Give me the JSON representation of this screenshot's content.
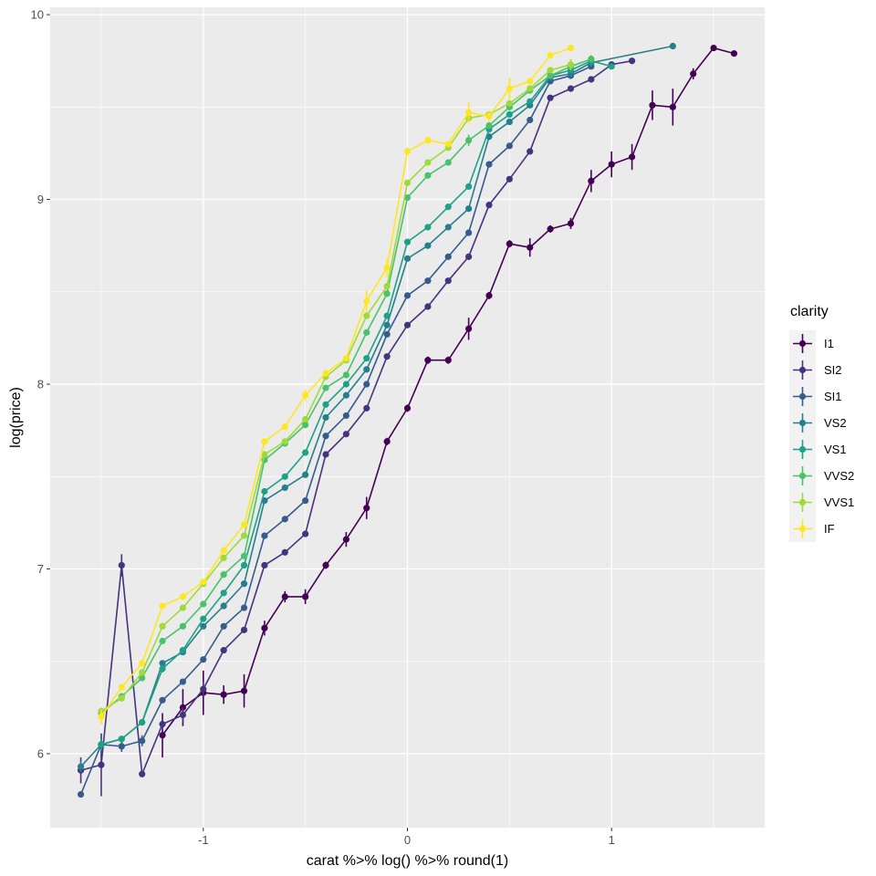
{
  "chart_data": {
    "type": "line",
    "xlabel": "carat %>% log() %>% round(1)",
    "ylabel": "log(price)",
    "xlim": [
      -1.75,
      1.75
    ],
    "ylim": [
      5.6,
      10.04
    ],
    "x_ticks": [
      -1,
      0,
      1
    ],
    "x_tick_labels": [
      "-1",
      "0",
      "1"
    ],
    "y_ticks": [
      6,
      7,
      8,
      9,
      10
    ],
    "y_tick_labels": [
      "6",
      "7",
      "8",
      "9",
      "10"
    ],
    "grid": true,
    "legend": {
      "title": "clarity",
      "position": "right"
    },
    "series": [
      {
        "name": "I1",
        "color": "#440154",
        "points": [
          [
            -1.2,
            6.1,
            0.12
          ],
          [
            -1.1,
            6.25,
            0.1
          ],
          [
            -1.0,
            6.33,
            0.12
          ],
          [
            -0.9,
            6.32,
            0.05
          ],
          [
            -0.8,
            6.34,
            0.09
          ],
          [
            -0.7,
            6.68,
            0.04
          ],
          [
            -0.6,
            6.85,
            0.03
          ],
          [
            -0.5,
            6.85,
            0.04
          ],
          [
            -0.4,
            7.02,
            0.02
          ],
          [
            -0.3,
            7.16,
            0.04
          ],
          [
            -0.2,
            7.33,
            0.06
          ],
          [
            -0.1,
            7.69,
            0.02
          ],
          [
            0.0,
            7.87,
            0.02
          ],
          [
            0.1,
            8.13,
            0.02
          ],
          [
            0.2,
            8.13,
            0.02
          ],
          [
            0.3,
            8.3,
            0.06
          ],
          [
            0.4,
            8.48,
            0.02
          ],
          [
            0.5,
            8.76,
            0.02
          ],
          [
            0.6,
            8.74,
            0.05
          ],
          [
            0.7,
            8.84,
            0.02
          ],
          [
            0.8,
            8.87,
            0.03
          ],
          [
            0.9,
            9.1,
            0.06
          ],
          [
            1.0,
            9.19,
            0.07
          ],
          [
            1.1,
            9.23,
            0.07
          ],
          [
            1.2,
            9.51,
            0.08
          ],
          [
            1.3,
            9.5,
            0.1
          ],
          [
            1.4,
            9.68,
            0.03
          ],
          [
            1.5,
            9.82,
            0.01
          ],
          [
            1.6,
            9.79,
            0.01
          ]
        ]
      },
      {
        "name": "SI2",
        "color": "#46337E",
        "points": [
          [
            -1.6,
            5.91,
            0.07
          ],
          [
            -1.5,
            5.94,
            0.17
          ],
          [
            -1.4,
            7.02,
            0.06
          ],
          [
            -1.3,
            5.89,
            0.01
          ],
          [
            -1.2,
            6.16,
            0.03
          ],
          [
            -1.1,
            6.21,
            0.04
          ],
          [
            -1.0,
            6.35,
            0.04
          ],
          [
            -0.9,
            6.56,
            0.01
          ],
          [
            -0.8,
            6.67,
            0.01
          ],
          [
            -0.7,
            7.02,
            0.01
          ],
          [
            -0.6,
            7.09,
            0.01
          ],
          [
            -0.5,
            7.19,
            0.01
          ],
          [
            -0.4,
            7.62,
            0.01
          ],
          [
            -0.3,
            7.73,
            0.01
          ],
          [
            -0.2,
            7.87,
            0.01
          ],
          [
            -0.1,
            8.15,
            0.01
          ],
          [
            0.0,
            8.32,
            0.01
          ],
          [
            0.1,
            8.42,
            0.01
          ],
          [
            0.2,
            8.56,
            0.01
          ],
          [
            0.3,
            8.69,
            0.01
          ],
          [
            0.4,
            8.97,
            0.01
          ],
          [
            0.5,
            9.11,
            0.01
          ],
          [
            0.6,
            9.26,
            0.01
          ],
          [
            0.7,
            9.55,
            0.01
          ],
          [
            0.8,
            9.6,
            0.01
          ],
          [
            0.9,
            9.65,
            0.01
          ],
          [
            1.0,
            9.73,
            0.01
          ],
          [
            1.1,
            9.75,
            0.01
          ]
        ]
      },
      {
        "name": "SI1",
        "color": "#365C8D",
        "points": [
          [
            -1.6,
            5.78,
            0.01
          ],
          [
            -1.5,
            6.05,
            0.05
          ],
          [
            -1.4,
            6.04,
            0.03
          ],
          [
            -1.3,
            6.07,
            0.03
          ],
          [
            -1.2,
            6.29,
            0.01
          ],
          [
            -1.1,
            6.39,
            0.01
          ],
          [
            -1.0,
            6.51,
            0.01
          ],
          [
            -0.9,
            6.69,
            0.01
          ],
          [
            -0.8,
            6.79,
            0.01
          ],
          [
            -0.7,
            7.18,
            0.01
          ],
          [
            -0.6,
            7.27,
            0.01
          ],
          [
            -0.5,
            7.37,
            0.01
          ],
          [
            -0.4,
            7.72,
            0.01
          ],
          [
            -0.3,
            7.83,
            0.01
          ],
          [
            -0.2,
            8.0,
            0.01
          ],
          [
            -0.1,
            8.27,
            0.01
          ],
          [
            0.0,
            8.48,
            0.01
          ],
          [
            0.1,
            8.56,
            0.01
          ],
          [
            0.2,
            8.69,
            0.01
          ],
          [
            0.3,
            8.82,
            0.01
          ],
          [
            0.4,
            9.19,
            0.01
          ],
          [
            0.5,
            9.29,
            0.01
          ],
          [
            0.6,
            9.43,
            0.01
          ],
          [
            0.7,
            9.64,
            0.01
          ],
          [
            0.8,
            9.67,
            0.01
          ],
          [
            0.9,
            9.72,
            0.01
          ]
        ]
      },
      {
        "name": "VS2",
        "color": "#277F8E",
        "points": [
          [
            -1.6,
            5.93,
            0.03
          ],
          [
            -1.5,
            6.05,
            0.03
          ],
          [
            -1.4,
            6.08,
            0.01
          ],
          [
            -1.3,
            6.17,
            0.01
          ],
          [
            -1.2,
            6.49,
            0.01
          ],
          [
            -1.1,
            6.55,
            0.01
          ],
          [
            -1.0,
            6.69,
            0.01
          ],
          [
            -0.9,
            6.8,
            0.01
          ],
          [
            -0.8,
            6.92,
            0.01
          ],
          [
            -0.7,
            7.37,
            0.01
          ],
          [
            -0.6,
            7.44,
            0.01
          ],
          [
            -0.5,
            7.51,
            0.01
          ],
          [
            -0.4,
            7.82,
            0.01
          ],
          [
            -0.3,
            7.94,
            0.01
          ],
          [
            -0.2,
            8.08,
            0.01
          ],
          [
            -0.1,
            8.32,
            0.01
          ],
          [
            0.0,
            8.68,
            0.01
          ],
          [
            0.1,
            8.75,
            0.01
          ],
          [
            0.2,
            8.85,
            0.01
          ],
          [
            0.3,
            8.95,
            0.01
          ],
          [
            0.4,
            9.34,
            0.01
          ],
          [
            0.5,
            9.42,
            0.01
          ],
          [
            0.6,
            9.51,
            0.01
          ],
          [
            0.7,
            9.66,
            0.01
          ],
          [
            0.8,
            9.68,
            0.01
          ],
          [
            0.9,
            9.74,
            0.01
          ],
          [
            1.3,
            9.83,
            0.01
          ]
        ]
      },
      {
        "name": "VS1",
        "color": "#1FA187",
        "points": [
          [
            -1.5,
            6.05,
            0.03
          ],
          [
            -1.4,
            6.08,
            0.01
          ],
          [
            -1.3,
            6.17,
            0.01
          ],
          [
            -1.2,
            6.46,
            0.02
          ],
          [
            -1.1,
            6.56,
            0.01
          ],
          [
            -1.0,
            6.73,
            0.01
          ],
          [
            -0.9,
            6.87,
            0.01
          ],
          [
            -0.8,
            7.02,
            0.01
          ],
          [
            -0.7,
            7.42,
            0.01
          ],
          [
            -0.6,
            7.5,
            0.01
          ],
          [
            -0.5,
            7.63,
            0.01
          ],
          [
            -0.4,
            7.89,
            0.01
          ],
          [
            -0.3,
            8.0,
            0.01
          ],
          [
            -0.2,
            8.14,
            0.01
          ],
          [
            -0.1,
            8.37,
            0.01
          ],
          [
            0.0,
            8.77,
            0.01
          ],
          [
            0.1,
            8.85,
            0.01
          ],
          [
            0.2,
            8.96,
            0.01
          ],
          [
            0.3,
            9.07,
            0.01
          ],
          [
            0.4,
            9.38,
            0.01
          ],
          [
            0.5,
            9.46,
            0.01
          ],
          [
            0.6,
            9.53,
            0.01
          ],
          [
            0.7,
            9.67,
            0.01
          ],
          [
            0.8,
            9.7,
            0.01
          ],
          [
            0.9,
            9.75,
            0.03
          ],
          [
            1.0,
            9.72,
            0.01
          ]
        ]
      },
      {
        "name": "VVS2",
        "color": "#4AC16D",
        "points": [
          [
            -1.5,
            6.22,
            0.02
          ],
          [
            -1.4,
            6.31,
            0.01
          ],
          [
            -1.3,
            6.41,
            0.01
          ],
          [
            -1.2,
            6.61,
            0.01
          ],
          [
            -1.1,
            6.69,
            0.01
          ],
          [
            -1.0,
            6.81,
            0.01
          ],
          [
            -0.9,
            6.97,
            0.01
          ],
          [
            -0.8,
            7.07,
            0.01
          ],
          [
            -0.7,
            7.59,
            0.01
          ],
          [
            -0.6,
            7.68,
            0.01
          ],
          [
            -0.5,
            7.78,
            0.01
          ],
          [
            -0.4,
            7.98,
            0.01
          ],
          [
            -0.3,
            8.05,
            0.01
          ],
          [
            -0.2,
            8.28,
            0.01
          ],
          [
            -0.1,
            8.49,
            0.01
          ],
          [
            0.0,
            9.01,
            0.01
          ],
          [
            0.1,
            9.13,
            0.01
          ],
          [
            0.2,
            9.2,
            0.01
          ],
          [
            0.3,
            9.32,
            0.03
          ],
          [
            0.4,
            9.4,
            0.01
          ],
          [
            0.5,
            9.5,
            0.01
          ],
          [
            0.6,
            9.59,
            0.01
          ],
          [
            0.7,
            9.67,
            0.01
          ],
          [
            0.8,
            9.72,
            0.01
          ],
          [
            0.9,
            9.76,
            0.01
          ]
        ]
      },
      {
        "name": "VVS1",
        "color": "#9FDA3A",
        "points": [
          [
            -1.5,
            6.23,
            0.02
          ],
          [
            -1.4,
            6.3,
            0.01
          ],
          [
            -1.3,
            6.44,
            0.01
          ],
          [
            -1.2,
            6.69,
            0.01
          ],
          [
            -1.1,
            6.79,
            0.01
          ],
          [
            -1.0,
            6.92,
            0.01
          ],
          [
            -0.9,
            7.06,
            0.01
          ],
          [
            -0.8,
            7.18,
            0.01
          ],
          [
            -0.7,
            7.62,
            0.01
          ],
          [
            -0.6,
            7.69,
            0.01
          ],
          [
            -0.5,
            7.81,
            0.01
          ],
          [
            -0.4,
            8.04,
            0.01
          ],
          [
            -0.3,
            8.13,
            0.01
          ],
          [
            -0.2,
            8.37,
            0.01
          ],
          [
            -0.1,
            8.53,
            0.01
          ],
          [
            0.0,
            9.09,
            0.01
          ],
          [
            0.1,
            9.2,
            0.01
          ],
          [
            0.2,
            9.28,
            0.01
          ],
          [
            0.3,
            9.44,
            0.01
          ],
          [
            0.4,
            9.46,
            0.01
          ],
          [
            0.5,
            9.52,
            0.01
          ],
          [
            0.6,
            9.6,
            0.01
          ],
          [
            0.7,
            9.7,
            0.01
          ],
          [
            0.8,
            9.73,
            0.03
          ]
        ]
      },
      {
        "name": "IF",
        "color": "#FDE725",
        "points": [
          [
            -1.5,
            6.2,
            0.04
          ],
          [
            -1.4,
            6.36,
            0.01
          ],
          [
            -1.3,
            6.49,
            0.01
          ],
          [
            -1.2,
            6.8,
            0.01
          ],
          [
            -1.1,
            6.85,
            0.01
          ],
          [
            -1.0,
            6.93,
            0.01
          ],
          [
            -0.9,
            7.1,
            0.01
          ],
          [
            -0.8,
            7.24,
            0.01
          ],
          [
            -0.7,
            7.69,
            0.01
          ],
          [
            -0.6,
            7.77,
            0.01
          ],
          [
            -0.5,
            7.94,
            0.03
          ],
          [
            -0.4,
            8.06,
            0.01
          ],
          [
            -0.3,
            8.14,
            0.01
          ],
          [
            -0.2,
            8.45,
            0.06
          ],
          [
            -0.1,
            8.63,
            0.05
          ],
          [
            0.0,
            9.26,
            0.02
          ],
          [
            0.1,
            9.32,
            0.02
          ],
          [
            0.2,
            9.3,
            0.01
          ],
          [
            0.3,
            9.47,
            0.06
          ],
          [
            0.4,
            9.45,
            0.03
          ],
          [
            0.5,
            9.6,
            0.06
          ],
          [
            0.6,
            9.64,
            0.01
          ],
          [
            0.7,
            9.78,
            0.01
          ],
          [
            0.8,
            9.82,
            0.01
          ]
        ]
      }
    ]
  }
}
